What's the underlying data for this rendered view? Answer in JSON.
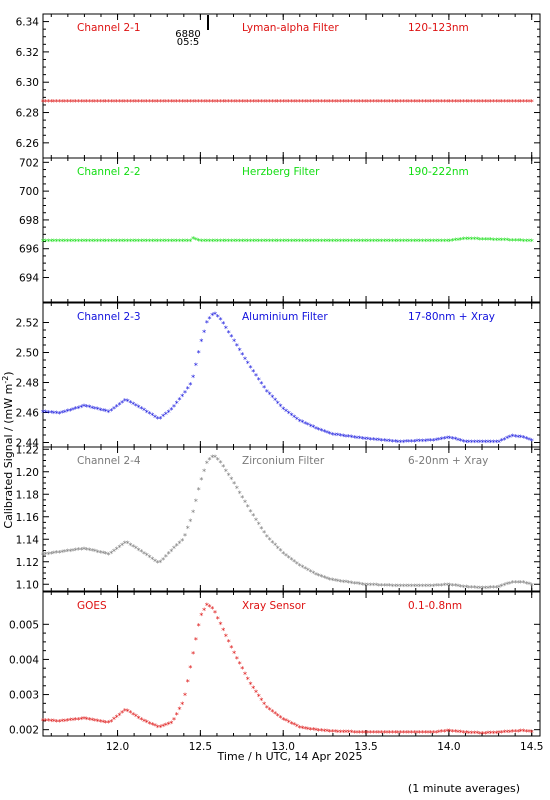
{
  "figure": {
    "ylabel": "Calibrated Signal / (mW m",
    "ylabel_sup": "-2",
    "ylabel_end": ")",
    "xlabel": "Time / h UTC, 14 Apr 2025",
    "footnote": "(1 minute averages)",
    "marker_labels": [
      "6880",
      "05:5"
    ]
  },
  "chart_data": [
    {
      "type": "scatter",
      "panel_labels": [
        "Channel 2-1",
        "Lyman-alpha Filter",
        "120-123nm"
      ],
      "color": "#dd1111",
      "ylim": [
        6.25,
        6.345
      ],
      "yticks": [
        6.26,
        6.28,
        6.3,
        6.32,
        6.34
      ],
      "ytick_labels": [
        "6.26",
        "6.28",
        "6.30",
        "6.32",
        "6.34"
      ],
      "x": [
        11.55,
        12.0,
        12.5,
        13.0,
        13.5,
        14.0,
        14.5
      ],
      "y": [
        6.287,
        6.287,
        6.287,
        6.287,
        6.287,
        6.287,
        6.287
      ]
    },
    {
      "type": "scatter",
      "panel_labels": [
        "Channel 2-2",
        "Herzberg Filter",
        "190-222nm"
      ],
      "color": "#11dd11",
      "ylim": [
        692.3,
        702.3
      ],
      "yticks": [
        694,
        696,
        698,
        700,
        702
      ],
      "ytick_labels": [
        "694",
        "696",
        "698",
        "700",
        "702"
      ],
      "x": [
        11.55,
        12.0,
        12.44,
        12.45,
        12.5,
        13.0,
        13.5,
        14.0,
        14.1,
        14.5
      ],
      "y": [
        696.5,
        696.5,
        696.5,
        696.7,
        696.5,
        696.5,
        696.5,
        696.5,
        696.65,
        696.5
      ]
    },
    {
      "type": "scatter",
      "panel_labels": [
        "Channel 2-3",
        "Aluminium Filter",
        "17-80nm + Xray"
      ],
      "color": "#1111dd",
      "ylim": [
        2.437,
        2.533
      ],
      "yticks": [
        2.44,
        2.46,
        2.48,
        2.5,
        2.52
      ],
      "ytick_labels": [
        "2.44",
        "2.46",
        "2.48",
        "2.50",
        "2.52"
      ],
      "x": [
        11.55,
        11.65,
        11.8,
        11.95,
        12.05,
        12.15,
        12.25,
        12.33,
        12.4,
        12.45,
        12.5,
        12.54,
        12.58,
        12.62,
        12.7,
        12.8,
        12.9,
        13.0,
        13.1,
        13.2,
        13.3,
        13.5,
        13.7,
        13.9,
        14.0,
        14.1,
        14.2,
        14.3,
        14.38,
        14.45,
        14.5
      ],
      "y": [
        2.46,
        2.459,
        2.464,
        2.46,
        2.468,
        2.462,
        2.455,
        2.462,
        2.472,
        2.48,
        2.505,
        2.52,
        2.526,
        2.522,
        2.508,
        2.49,
        2.474,
        2.462,
        2.454,
        2.449,
        2.445,
        2.442,
        2.44,
        2.441,
        2.443,
        2.44,
        2.44,
        2.44,
        2.444,
        2.443,
        2.441
      ]
    },
    {
      "type": "scatter",
      "panel_labels": [
        "Channel 2-4",
        "Zirconium Filter",
        "6-20nm + Xray"
      ],
      "color": "#7a7a7a",
      "ylim": [
        1.094,
        1.222
      ],
      "yticks": [
        1.1,
        1.12,
        1.14,
        1.16,
        1.18,
        1.2,
        1.22
      ],
      "ytick_labels": [
        "1.10",
        "1.12",
        "1.14",
        "1.16",
        "1.18",
        "1.20",
        "1.22"
      ],
      "x": [
        11.55,
        11.65,
        11.8,
        11.95,
        12.05,
        12.15,
        12.25,
        12.33,
        12.4,
        12.45,
        12.5,
        12.54,
        12.58,
        12.62,
        12.7,
        12.8,
        12.9,
        13.0,
        13.1,
        13.2,
        13.3,
        13.5,
        13.7,
        13.9,
        14.0,
        14.1,
        14.2,
        14.3,
        14.38,
        14.45,
        14.5
      ],
      "y": [
        1.126,
        1.128,
        1.131,
        1.126,
        1.137,
        1.128,
        1.118,
        1.13,
        1.14,
        1.16,
        1.19,
        1.208,
        1.214,
        1.208,
        1.19,
        1.165,
        1.142,
        1.127,
        1.116,
        1.108,
        1.103,
        1.099,
        1.098,
        1.098,
        1.099,
        1.097,
        1.096,
        1.097,
        1.101,
        1.101,
        1.099
      ]
    },
    {
      "type": "scatter",
      "panel_labels": [
        "GOES",
        "Xray Sensor",
        "0.1-0.8nm"
      ],
      "color": "#dd1111",
      "ylim": [
        0.00182,
        0.00592
      ],
      "yticks": [
        0.002,
        0.003,
        0.004,
        0.005
      ],
      "ytick_labels": [
        "0.002",
        "0.003",
        "0.004",
        "0.005"
      ],
      "x": [
        11.55,
        11.65,
        11.8,
        11.95,
        12.05,
        12.15,
        12.25,
        12.33,
        12.4,
        12.45,
        12.5,
        12.54,
        12.58,
        12.62,
        12.7,
        12.8,
        12.9,
        13.0,
        13.1,
        13.2,
        13.3,
        13.5,
        13.7,
        13.9,
        14.0,
        14.1,
        14.2,
        14.3,
        14.38,
        14.45,
        14.5
      ],
      "y": [
        0.00225,
        0.00222,
        0.0023,
        0.00218,
        0.00255,
        0.00225,
        0.00205,
        0.00218,
        0.0028,
        0.004,
        0.0052,
        0.00555,
        0.0054,
        0.005,
        0.0042,
        0.0033,
        0.00262,
        0.00228,
        0.00205,
        0.00197,
        0.00193,
        0.0019,
        0.0019,
        0.0019,
        0.00195,
        0.0019,
        0.00188,
        0.0019,
        0.00193,
        0.00195,
        0.00192
      ]
    }
  ],
  "x_axis": {
    "xlim": [
      11.55,
      14.55
    ],
    "ticks": [
      12.0,
      12.5,
      13.0,
      13.5,
      14.0,
      14.5
    ],
    "tick_labels": [
      "12.0",
      "12.5",
      "13.0",
      "13.5",
      "14.0",
      "14.5"
    ]
  }
}
